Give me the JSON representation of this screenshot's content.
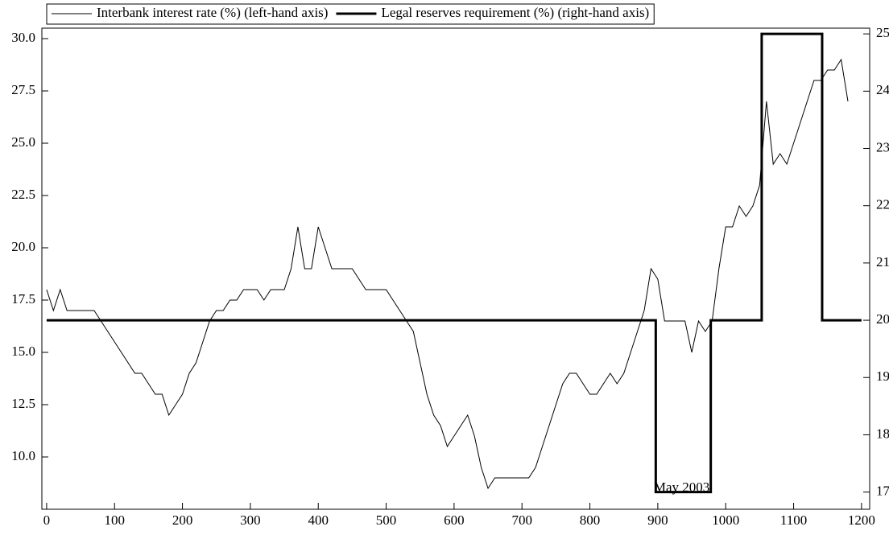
{
  "chart_data": {
    "type": "line",
    "annotations": [
      {
        "text": "May 2003",
        "x": 900,
        "y": 8.5
      }
    ],
    "series": [
      {
        "name": "Interbank interest rate (%) (left-hand axis)",
        "color": "#000000",
        "line_width": 1,
        "x": [
          0,
          10,
          20,
          30,
          40,
          50,
          60,
          70,
          80,
          90,
          100,
          110,
          120,
          130,
          140,
          150,
          160,
          170,
          180,
          190,
          200,
          210,
          220,
          230,
          240,
          250,
          260,
          270,
          280,
          290,
          300,
          310,
          320,
          330,
          340,
          350,
          360,
          370,
          380,
          390,
          400,
          410,
          420,
          430,
          440,
          450,
          460,
          470,
          480,
          490,
          500,
          510,
          520,
          530,
          540,
          550,
          560,
          570,
          580,
          590,
          600,
          610,
          620,
          630,
          640,
          650,
          660,
          670,
          680,
          690,
          700,
          710,
          720,
          730,
          740,
          750,
          760,
          770,
          780,
          790,
          800,
          810,
          820,
          830,
          840,
          850,
          860,
          870,
          880,
          890,
          900,
          910,
          920,
          930,
          940,
          950,
          960,
          970,
          980,
          990,
          1000,
          1010,
          1020,
          1030,
          1040,
          1050,
          1060,
          1070,
          1080,
          1090,
          1100,
          1110,
          1120,
          1130,
          1140,
          1150,
          1160,
          1170,
          1180
        ],
        "values": [
          18,
          17,
          18,
          17,
          17,
          17,
          17,
          17,
          16.5,
          16,
          15.5,
          15,
          14.5,
          14,
          14,
          13.5,
          13,
          13,
          12,
          12.5,
          13,
          14,
          14.5,
          15.5,
          16.5,
          17,
          17,
          17.5,
          17.5,
          18,
          18,
          18,
          17.5,
          18,
          18,
          18,
          19,
          21,
          19,
          19,
          21,
          20,
          19,
          19,
          19,
          19,
          18.5,
          18,
          18,
          18,
          18,
          17.5,
          17,
          16.5,
          16,
          14.5,
          13,
          12,
          11.5,
          10.5,
          11,
          11.5,
          12,
          11,
          9.5,
          8.5,
          9,
          9,
          9,
          9,
          9,
          9,
          9.5,
          10.5,
          11.5,
          12.5,
          13.5,
          14,
          14,
          13.5,
          13,
          13,
          13.5,
          14,
          13.5,
          14,
          15,
          16,
          17,
          19,
          18.5,
          16.5,
          16.5,
          16.5,
          16.5,
          15,
          16.5,
          16,
          16.5,
          19,
          21,
          21,
          22,
          21.5,
          22,
          23,
          27,
          24,
          24.5,
          24,
          25,
          26,
          27,
          28,
          28,
          28.5,
          28.5,
          29,
          27
        ]
      },
      {
        "name": "Legal reserves requirement (%) (right-hand axis)",
        "color": "#000000",
        "line_width": 3,
        "axis": "y2",
        "x": [
          0,
          897,
          897,
          978,
          978,
          1053,
          1053,
          1142,
          1142,
          1200
        ],
        "values": [
          20,
          20,
          17,
          17,
          20,
          20,
          25,
          25,
          20,
          20
        ]
      }
    ],
    "xlim": [
      -7,
      1212
    ],
    "xticks": [
      0,
      100,
      200,
      300,
      400,
      500,
      600,
      700,
      800,
      900,
      1000,
      1100,
      1200
    ],
    "ylim": [
      7.5,
      30.5
    ],
    "yticks": [
      {
        "value": 10,
        "label": "10.0"
      },
      12.5,
      {
        "value": 15,
        "label": "15.0"
      },
      17.5,
      {
        "value": 20,
        "label": "20.0"
      },
      22.5,
      {
        "value": 25,
        "label": "25.0"
      },
      27.5,
      {
        "value": 30,
        "label": "30.0"
      }
    ],
    "y2lim": [
      16.7,
      25.1
    ],
    "y2ticks": [
      17,
      18,
      19,
      20,
      21,
      22,
      23,
      24,
      25
    ],
    "legend": "top"
  }
}
